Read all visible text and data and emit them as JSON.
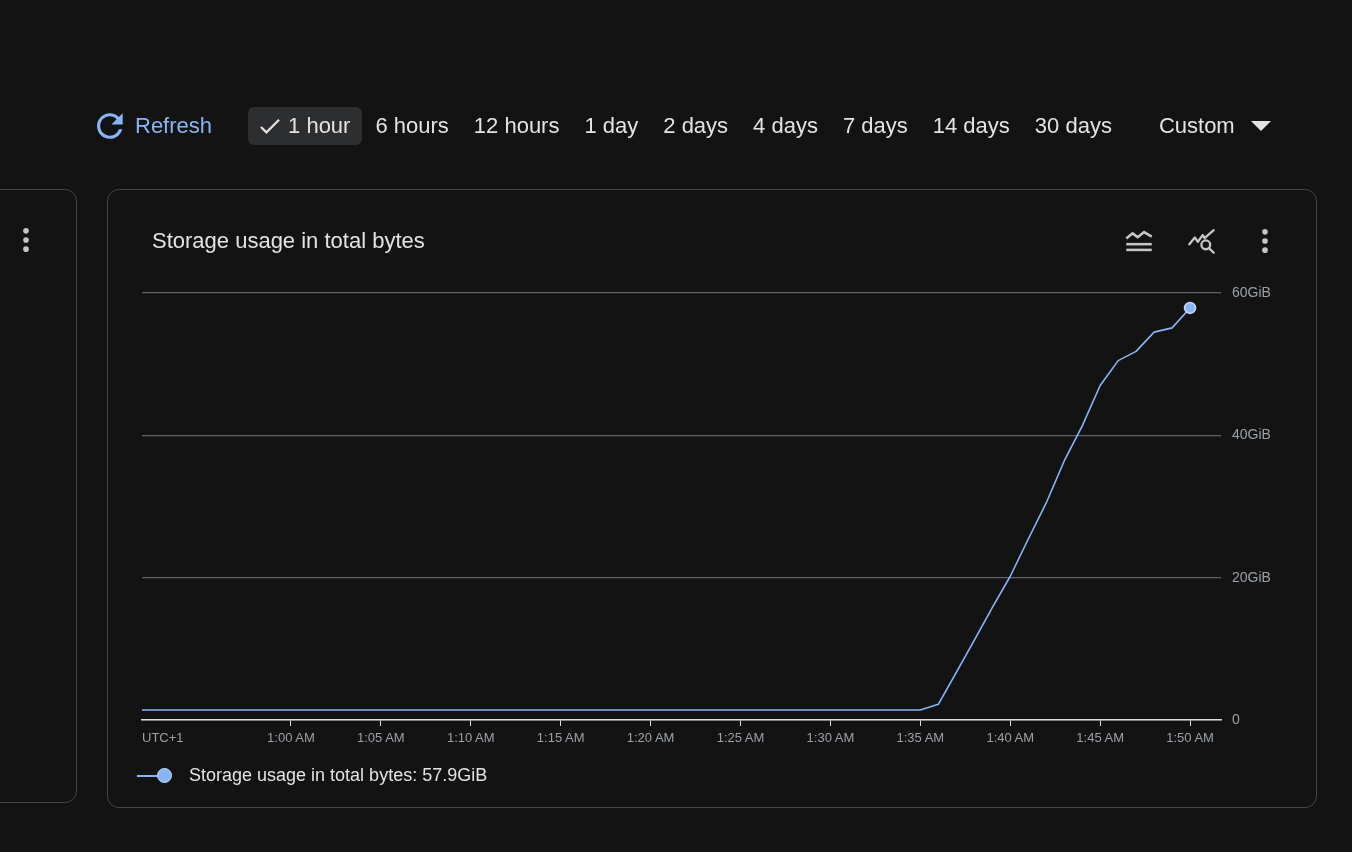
{
  "chart_data": [
    {
      "type": "other",
      "annotations": [
        "Refresh",
        "1 hour",
        "6 hours",
        "12 hours",
        "1 day",
        "2 days",
        "4 days",
        "7 days",
        "14 days",
        "30 days",
        "Custom"
      ]
    },
    {
      "type": "line",
      "title": "Storage usage in total bytes",
      "xlabel": "UTC+1",
      "xlim": [
        0.862,
        1.862
      ],
      "xticks": [
        {
          "value": 1,
          "label": "1:00 AM"
        },
        {
          "value": 1.0833,
          "label": "1:05 AM"
        },
        {
          "value": 1.1667,
          "label": "1:10 AM"
        },
        {
          "value": 1.25,
          "label": "1:15 AM"
        },
        {
          "value": 1.3333,
          "label": "1:20 AM"
        },
        {
          "value": 1.4167,
          "label": "1:25 AM"
        },
        {
          "value": 1.5,
          "label": "1:30 AM"
        },
        {
          "value": 1.5833,
          "label": "1:35 AM"
        },
        {
          "value": 1.6667,
          "label": "1:40 AM"
        },
        {
          "value": 1.75,
          "label": "1:45 AM"
        },
        {
          "value": 1.8333,
          "label": "1:50 AM"
        }
      ],
      "ylim": [
        0,
        60
      ],
      "yticks": [
        0,
        {
          "value": 20,
          "label": "20GiB"
        },
        {
          "value": 40,
          "label": "40GiB"
        },
        {
          "value": 60,
          "label": "60GiB"
        }
      ],
      "grid": "y",
      "legend": "bottom left",
      "series": [
        {
          "name": "Storage usage in total bytes: 57.9GiB",
          "color": "#8ab4f8",
          "x": [
            0.862,
            1.5833,
            1.6,
            1.6167,
            1.6333,
            1.65,
            1.6667,
            1.6833,
            1.7,
            1.7167,
            1.7333,
            1.75,
            1.7667,
            1.7833,
            1.8,
            1.8167,
            1.8333
          ],
          "values": [
            1.4,
            1.4,
            2.2,
            6.7,
            11.2,
            15.8,
            20.2,
            25.4,
            30.5,
            36.4,
            41.3,
            47.0,
            50.5,
            51.8,
            54.5,
            55.1,
            57.9
          ]
        },
        {
          "type": "scatter",
          "color": "#8ab4f8",
          "marker": "circle",
          "x": [
            1.8333
          ],
          "values": [
            57.9
          ]
        }
      ]
    }
  ]
}
